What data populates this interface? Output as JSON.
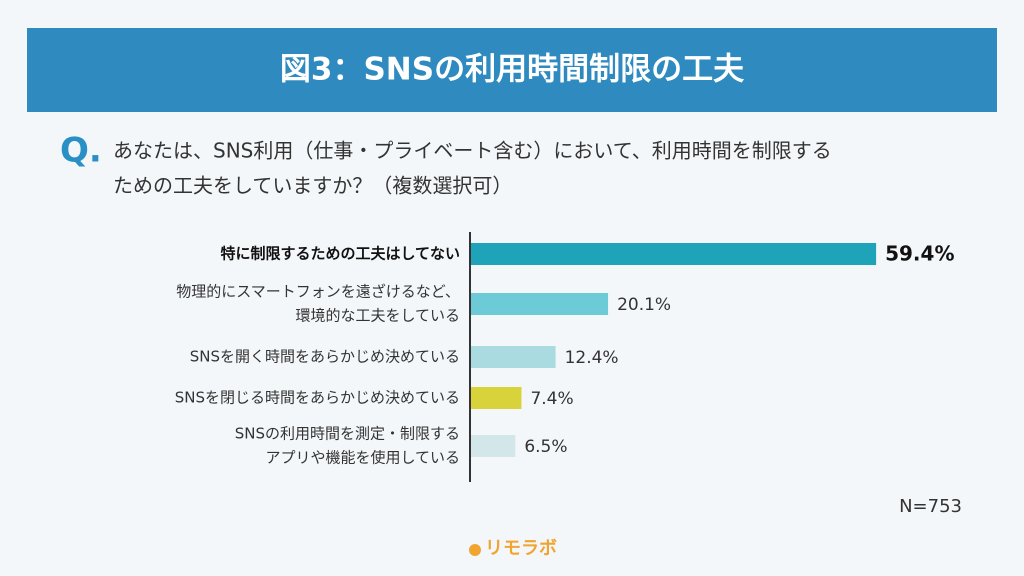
{
  "chart_data": {
    "type": "bar",
    "orientation": "horizontal",
    "title": "図3：SNSの利用時間制限の工夫",
    "question_marker": "Q.",
    "question": [
      "あなたは、SNS利用（仕事・プライベート含む）において、利用時間を制限する",
      "ための工夫をしていますか？（複数選択可）"
    ],
    "categories": [
      [
        "特に制限するための工夫はしてない"
      ],
      [
        "物理的にスマートフォンを遠ざけるなど、",
        "環境的な工夫をしている"
      ],
      [
        "SNSを開く時間をあらかじめ決めている"
      ],
      [
        "SNSを閉じる時間をあらかじめ決めている"
      ],
      [
        "SNSの利用時間を測定・制限する",
        "アプリや機能を使用している"
      ]
    ],
    "values": [
      59.4,
      20.1,
      12.4,
      7.4,
      6.5
    ],
    "value_labels": [
      "59.4%",
      "20.1%",
      "12.4%",
      "7.4%",
      "6.5%"
    ],
    "colors": [
      "#1fa3b8",
      "#6dcbd8",
      "#a9dbe0",
      "#d8d33a",
      "#d3e6e9"
    ],
    "note": "N=753",
    "brand": "リモラボ"
  }
}
